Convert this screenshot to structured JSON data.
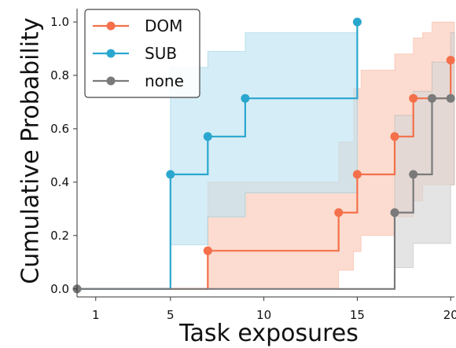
{
  "chart_data": {
    "type": "line",
    "xlabel": "Task exposures",
    "ylabel": "Cumulative Probability",
    "xlim": [
      0,
      20.2
    ],
    "ylim": [
      -0.03,
      1.05
    ],
    "xticks": [
      1,
      5,
      10,
      15,
      20
    ],
    "yticks": [
      0.0,
      0.2,
      0.4,
      0.6,
      0.8,
      1.0
    ],
    "ytick_labels": [
      "0.0",
      "0.2",
      "0.4",
      "0.6",
      "0.8",
      "1.0"
    ],
    "legend_position": "top-left",
    "series": [
      {
        "name": "DOM",
        "color": "#f4704a",
        "fill": "#fbc9b7",
        "x": [
          0,
          7,
          14,
          15,
          17,
          18,
          20
        ],
        "y": [
          0.0,
          0.143,
          0.286,
          0.429,
          0.571,
          0.714,
          0.857
        ],
        "band_x": [
          7,
          14,
          14.8,
          15.2,
          17,
          18,
          18.5,
          19,
          20,
          20.2
        ],
        "band_low": [
          0.0,
          0.07,
          0.14,
          0.2,
          0.27,
          0.33,
          0.39,
          0.39,
          0.39,
          0.39
        ],
        "band_high": [
          0.4,
          0.55,
          0.75,
          0.82,
          0.88,
          0.94,
          0.96,
          1.0,
          1.0,
          1.0
        ]
      },
      {
        "name": "SUB",
        "color": "#2aa7cf",
        "fill": "#bfe4f1",
        "x": [
          0,
          5,
          7,
          9,
          15
        ],
        "y": [
          0.0,
          0.429,
          0.571,
          0.714,
          1.0
        ],
        "band_x": [
          5,
          7,
          9,
          15
        ],
        "band_low": [
          0.165,
          0.27,
          0.36,
          0.36
        ],
        "band_high": [
          0.83,
          0.89,
          0.96,
          1.0
        ]
      },
      {
        "name": "none",
        "color": "#7a7a7a",
        "fill": "#d6d6d6",
        "x": [
          0,
          17,
          18,
          19,
          20
        ],
        "y": [
          0.0,
          0.286,
          0.429,
          0.714,
          0.714
        ],
        "band_x": [
          17,
          18,
          19,
          20,
          20.2
        ],
        "band_low": [
          0.08,
          0.17,
          0.17,
          0.39,
          0.39
        ],
        "band_high": [
          0.65,
          0.74,
          0.85,
          0.96,
          0.96
        ]
      }
    ]
  }
}
